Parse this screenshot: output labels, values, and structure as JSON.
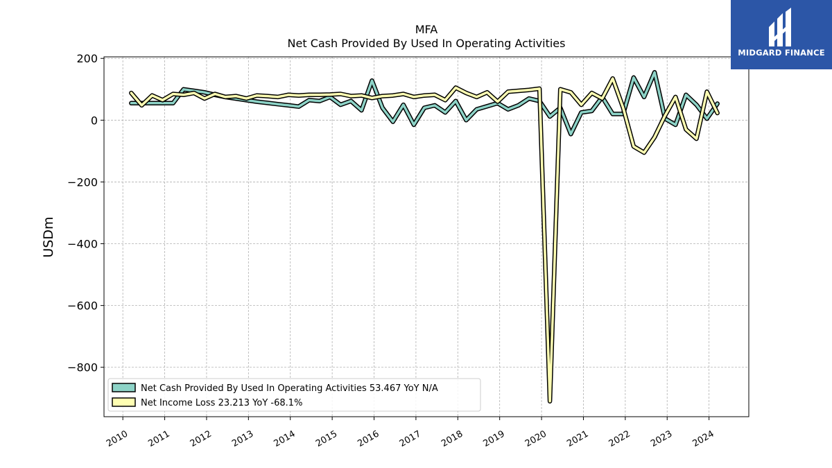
{
  "header": {
    "ticker": "MFA",
    "title": "Net Cash Provided By Used In Operating Activities"
  },
  "logo": {
    "name": "MIDGARD FINANCE",
    "icon": "midgard-logo-icon",
    "background": "#2c56a7"
  },
  "chart_data": {
    "type": "line",
    "title": "MFA",
    "subtitle": "Net Cash Provided By Used In Operating Activities",
    "ylabel": "USDm",
    "xlabel": "",
    "xlim": [
      2009.55,
      2024.95
    ],
    "ylim": [
      -960,
      205
    ],
    "x_ticks": [
      "2010",
      "2011",
      "2012",
      "2013",
      "2014",
      "2015",
      "2016",
      "2017",
      "2018",
      "2019",
      "2020",
      "2021",
      "2022",
      "2023",
      "2024"
    ],
    "y_ticks": [
      200,
      0,
      -200,
      -400,
      -600,
      -800
    ],
    "y_tick_labels": [
      "200",
      "0",
      "−200",
      "−400",
      "−600",
      "−800"
    ],
    "grid": true,
    "legend_position": "lower-left",
    "x": [
      2010.2,
      2010.45,
      2010.7,
      2010.95,
      2011.2,
      2011.45,
      2011.7,
      2011.95,
      2012.2,
      2012.45,
      2012.7,
      2012.95,
      2013.2,
      2013.45,
      2013.7,
      2013.95,
      2014.2,
      2014.45,
      2014.7,
      2014.95,
      2015.2,
      2015.45,
      2015.7,
      2015.95,
      2016.2,
      2016.45,
      2016.7,
      2016.95,
      2017.2,
      2017.45,
      2017.7,
      2017.95,
      2018.2,
      2018.45,
      2018.7,
      2018.95,
      2019.2,
      2019.45,
      2019.7,
      2019.95,
      2020.2,
      2020.45,
      2020.7,
      2020.95,
      2021.2,
      2021.45,
      2021.7,
      2021.95,
      2022.2,
      2022.45,
      2022.7,
      2022.95,
      2023.2,
      2023.45,
      2023.7,
      2023.95,
      2024.2
    ],
    "series": [
      {
        "name": "Net Cash Provided By Used In Operating Activities  53.467 YoY N/A",
        "color": "#8dd3c7",
        "values": [
          55,
          55,
          55,
          55,
          55,
          100,
          95,
          90,
          82,
          75,
          70,
          65,
          60,
          56,
          52,
          48,
          44,
          65,
          62,
          75,
          50,
          62,
          32,
          128,
          40,
          -5,
          50,
          -15,
          40,
          48,
          25,
          62,
          0,
          35,
          45,
          55,
          35,
          48,
          70,
          62,
          12,
          40,
          -45,
          25,
          30,
          75,
          20,
          20,
          138,
          75,
          155,
          5,
          -15,
          82,
          50,
          5,
          53.467
        ]
      },
      {
        "name": "Net Income Loss  23.213 YoY -68.1%",
        "color": "#ffffb3",
        "values": [
          88,
          48,
          80,
          65,
          85,
          82,
          88,
          70,
          85,
          75,
          78,
          70,
          80,
          78,
          75,
          82,
          80,
          82,
          82,
          83,
          85,
          78,
          80,
          72,
          78,
          80,
          85,
          75,
          80,
          82,
          65,
          105,
          88,
          75,
          90,
          60,
          92,
          95,
          98,
          102,
          -910,
          100,
          90,
          50,
          88,
          70,
          135,
          40,
          -85,
          -105,
          -55,
          15,
          75,
          -30,
          -60,
          92,
          23.213
        ]
      }
    ]
  }
}
